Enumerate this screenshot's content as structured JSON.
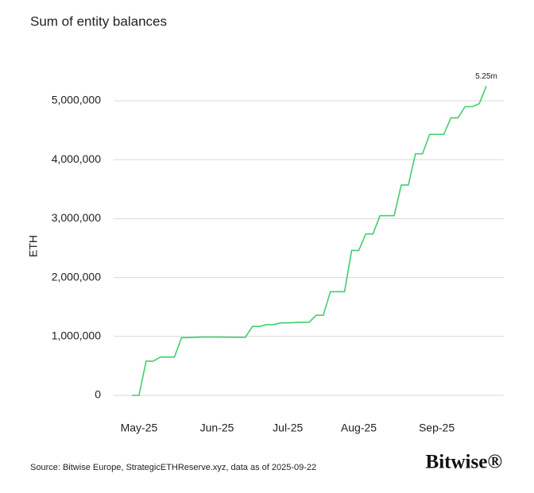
{
  "chart_data": {
    "type": "line",
    "title": "Sum of entity balances",
    "y_label": "ETH",
    "source": "Source: Bitwise Europe, StrategicETHReserve.xyz, data as of 2025-09-22",
    "brand": "Bitwise®",
    "categories": [
      null,
      "May-25",
      null,
      null,
      null,
      null,
      null,
      null,
      null,
      null,
      null,
      null,
      "Jun-25",
      null,
      null,
      null,
      null,
      null,
      null,
      null,
      null,
      null,
      "Jul-25",
      null,
      null,
      null,
      null,
      null,
      null,
      null,
      null,
      null,
      "Aug-25",
      null,
      null,
      null,
      null,
      null,
      null,
      null,
      null,
      null,
      null,
      "Sep-25",
      null,
      null,
      null,
      null,
      null,
      null,
      null
    ],
    "series": [
      {
        "name": "Sum of entity balances",
        "color": "#3fcf6e",
        "values": [
          0,
          0,
          580000,
          580000,
          650000,
          650000,
          650000,
          980000,
          980000,
          985000,
          990000,
          990000,
          990000,
          988000,
          986000,
          985000,
          985000,
          1170000,
          1170000,
          1200000,
          1200000,
          1230000,
          1230000,
          1235000,
          1240000,
          1240000,
          1360000,
          1360000,
          1760000,
          1760000,
          1760000,
          2460000,
          2460000,
          2740000,
          2740000,
          3050000,
          3050000,
          3050000,
          3570000,
          3570000,
          4100000,
          4100000,
          4430000,
          4430000,
          4430000,
          4710000,
          4710000,
          4900000,
          4900000,
          4950000,
          5250000
        ],
        "value_labels": [
          null,
          null,
          null,
          null,
          null,
          null,
          null,
          null,
          null,
          null,
          null,
          null,
          null,
          null,
          null,
          null,
          null,
          null,
          null,
          null,
          null,
          null,
          null,
          null,
          null,
          null,
          null,
          null,
          null,
          null,
          null,
          null,
          null,
          null,
          null,
          null,
          null,
          null,
          null,
          null,
          null,
          null,
          null,
          null,
          null,
          null,
          null,
          null,
          null,
          null,
          "5.25m"
        ]
      }
    ],
    "ylim": [
      0,
      5300000
    ],
    "yticks": [
      0,
      {
        "value": 1000000,
        "label": "1,000,000"
      },
      {
        "value": 2000000,
        "label": "2,000,000"
      },
      {
        "value": 3000000,
        "label": "3,000,000"
      },
      {
        "value": 4000000,
        "label": "4,000,000"
      },
      {
        "value": 5000000,
        "label": "5,000,000"
      }
    ],
    "grid": true
  }
}
